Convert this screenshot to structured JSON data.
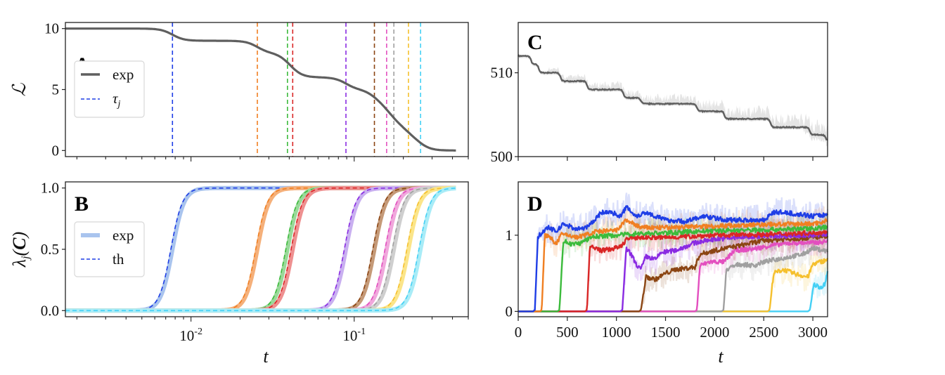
{
  "colors": {
    "series": [
      "#1f3ee6",
      "#f07f22",
      "#3cbb3c",
      "#d92626",
      "#8a2be2",
      "#8b4513",
      "#e34fbf",
      "#a0a0a0",
      "#f5c02e",
      "#44d0f5"
    ],
    "loss": "#5f5f5f",
    "loss_band": "#e4e4e4"
  },
  "chart_data": [
    {
      "id": "A",
      "type": "line",
      "panel_label": "A",
      "xscale": "log",
      "xlim": [
        0.0017,
        0.5
      ],
      "ylim": [
        -0.5,
        10.5
      ],
      "yticks": [
        0,
        5,
        10
      ],
      "ytick_labels": [
        "0",
        "5",
        "10"
      ],
      "ylabel": "ℒ",
      "xlabel": "",
      "legend": {
        "placement": "upper-left",
        "entries": [
          {
            "label": "exp",
            "style": "solid-gray"
          },
          {
            "label": "τ_j",
            "style": "dashed-blue"
          }
        ]
      },
      "series": [
        {
          "name": "exp",
          "plateaus": [
            10,
            9,
            8,
            6,
            5,
            4,
            3,
            2,
            1,
            0
          ],
          "x_end": 0.42
        }
      ],
      "tau_j": [
        0.0077,
        0.0255,
        0.039,
        0.042,
        0.089,
        0.133,
        0.158,
        0.175,
        0.215,
        0.255
      ]
    },
    {
      "id": "B",
      "type": "line",
      "panel_label": "B",
      "xscale": "log",
      "xlim": [
        0.0017,
        0.5
      ],
      "ylim": [
        -0.05,
        1.05
      ],
      "yticks": [
        0.0,
        0.5,
        1.0
      ],
      "ytick_labels": [
        "0.0",
        "0.5",
        "1.0"
      ],
      "xticks": [
        0.01,
        0.1
      ],
      "xtick_labels": [
        "10",
        "10"
      ],
      "xtick_exponents": [
        "-2",
        "-1"
      ],
      "xlabel": "t",
      "ylabel": "λ_j(C)",
      "legend": {
        "placement": "upper-left",
        "entries": [
          {
            "label": "exp",
            "style": "thick-light"
          },
          {
            "label": "th",
            "style": "dashed"
          }
        ]
      },
      "series_midpoints": [
        0.0077,
        0.0255,
        0.039,
        0.042,
        0.089,
        0.133,
        0.158,
        0.175,
        0.215,
        0.255
      ],
      "x_end": 0.42
    },
    {
      "id": "C",
      "type": "line",
      "panel_label": "C",
      "xlim": [
        0,
        3150
      ],
      "ylim": [
        500,
        516
      ],
      "yticks": [
        500,
        510
      ],
      "ytick_labels": [
        "500",
        "510"
      ],
      "xticks": [
        0,
        500,
        1000,
        1500,
        2000,
        2500,
        3000
      ],
      "xlabel": "",
      "ylabel": "",
      "series": [
        {
          "name": "loss",
          "steps": [
            [
              0,
              512
            ],
            [
              130,
              511
            ],
            [
              210,
              510
            ],
            [
              430,
              509
            ],
            [
              700,
              508
            ],
            [
              1070,
              507
            ],
            [
              1250,
              506.3
            ],
            [
              1820,
              505.4
            ],
            [
              2100,
              504.5
            ],
            [
              2570,
              503.5
            ],
            [
              2970,
              502.6
            ],
            [
              3130,
              501.9
            ]
          ]
        }
      ]
    },
    {
      "id": "D",
      "type": "line",
      "panel_label": "D",
      "xlim": [
        0,
        3150
      ],
      "ylim": [
        -0.07,
        1.7
      ],
      "yticks": [
        0,
        1
      ],
      "ytick_labels": [
        "0",
        "1"
      ],
      "xticks": [
        0,
        500,
        1000,
        1500,
        2000,
        2500,
        3000
      ],
      "xtick_labels": [
        "0",
        "500",
        "1000",
        "1500",
        "2000",
        "2500",
        "3000"
      ],
      "xlabel": "t",
      "ylabel": "",
      "series": [
        {
          "onset": 170,
          "points": [
            [
              200,
              0.98
            ],
            [
              300,
              1.1
            ],
            [
              400,
              1.05
            ],
            [
              450,
              1.15
            ],
            [
              600,
              1.08
            ],
            [
              700,
              1.1
            ],
            [
              850,
              1.3
            ],
            [
              950,
              1.3
            ],
            [
              1050,
              1.25
            ],
            [
              1100,
              1.38
            ],
            [
              1200,
              1.25
            ],
            [
              1300,
              1.3
            ],
            [
              1500,
              1.2
            ],
            [
              1700,
              1.18
            ],
            [
              1900,
              1.25
            ],
            [
              2100,
              1.2
            ],
            [
              2500,
              1.2
            ],
            [
              2600,
              1.3
            ],
            [
              2700,
              1.3
            ],
            [
              3000,
              1.25
            ],
            [
              3150,
              1.27
            ]
          ]
        },
        {
          "onset": 240,
          "points": [
            [
              270,
              1.0
            ],
            [
              350,
              0.95
            ],
            [
              380,
              0.88
            ],
            [
              450,
              1.02
            ],
            [
              600,
              0.97
            ],
            [
              800,
              1.05
            ],
            [
              1000,
              1.06
            ],
            [
              1100,
              1.2
            ],
            [
              1250,
              1.1
            ],
            [
              1500,
              1.1
            ],
            [
              2000,
              1.12
            ],
            [
              2500,
              1.14
            ],
            [
              3000,
              1.15
            ],
            [
              3150,
              1.19
            ]
          ]
        },
        {
          "onset": 420,
          "points": [
            [
              460,
              0.93
            ],
            [
              550,
              0.88
            ],
            [
              650,
              0.9
            ],
            [
              750,
              0.98
            ],
            [
              1000,
              1.0
            ],
            [
              1200,
              1.02
            ],
            [
              1500,
              1.03
            ],
            [
              2000,
              1.06
            ],
            [
              2500,
              1.07
            ],
            [
              3000,
              1.09
            ],
            [
              3150,
              1.11
            ]
          ]
        },
        {
          "onset": 700,
          "points": [
            [
              730,
              0.85
            ],
            [
              850,
              0.8
            ],
            [
              950,
              0.82
            ],
            [
              1050,
              0.85
            ],
            [
              1100,
              0.95
            ],
            [
              1200,
              0.97
            ],
            [
              1500,
              0.97
            ],
            [
              2000,
              1.0
            ],
            [
              2500,
              1.01
            ],
            [
              3000,
              1.03
            ],
            [
              3150,
              1.05
            ]
          ]
        },
        {
          "onset": 1060,
          "points": [
            [
              1100,
              0.82
            ],
            [
              1150,
              0.75
            ],
            [
              1200,
              0.62
            ],
            [
              1250,
              0.55
            ],
            [
              1300,
              0.72
            ],
            [
              1400,
              0.68
            ],
            [
              1450,
              0.77
            ],
            [
              1600,
              0.8
            ],
            [
              1800,
              0.9
            ],
            [
              2000,
              0.95
            ],
            [
              2500,
              0.99
            ],
            [
              3000,
              1.0
            ],
            [
              3150,
              1.02
            ]
          ]
        },
        {
          "onset": 1250,
          "points": [
            [
              1300,
              0.45
            ],
            [
              1400,
              0.42
            ],
            [
              1500,
              0.5
            ],
            [
              1600,
              0.55
            ],
            [
              1800,
              0.58
            ],
            [
              1850,
              0.75
            ],
            [
              2000,
              0.8
            ],
            [
              2200,
              0.85
            ],
            [
              2500,
              0.93
            ],
            [
              3000,
              0.97
            ],
            [
              3150,
              0.98
            ]
          ]
        },
        {
          "onset": 1820,
          "points": [
            [
              1850,
              0.6
            ],
            [
              1950,
              0.65
            ],
            [
              2100,
              0.65
            ],
            [
              2200,
              0.8
            ],
            [
              2400,
              0.82
            ],
            [
              2600,
              0.87
            ],
            [
              2800,
              0.9
            ],
            [
              3000,
              0.9
            ],
            [
              3150,
              0.92
            ]
          ]
        },
        {
          "onset": 2090,
          "points": [
            [
              2120,
              0.55
            ],
            [
              2250,
              0.62
            ],
            [
              2400,
              0.6
            ],
            [
              2500,
              0.65
            ],
            [
              2700,
              0.7
            ],
            [
              2900,
              0.75
            ],
            [
              3000,
              0.83
            ],
            [
              3150,
              0.79
            ]
          ]
        },
        {
          "onset": 2560,
          "points": [
            [
              2600,
              0.5
            ],
            [
              2700,
              0.55
            ],
            [
              2800,
              0.5
            ],
            [
              2950,
              0.45
            ],
            [
              3000,
              0.62
            ],
            [
              3150,
              0.68
            ]
          ]
        },
        {
          "onset": 2970,
          "points": [
            [
              3010,
              0.35
            ],
            [
              3080,
              0.32
            ],
            [
              3120,
              0.35
            ],
            [
              3150,
              0.52
            ]
          ]
        }
      ]
    }
  ]
}
